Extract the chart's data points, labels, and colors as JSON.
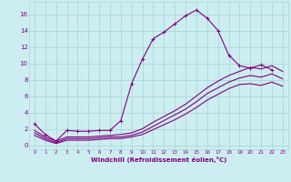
{
  "xlabel": "Windchill (Refroidissement éolien,°C)",
  "bg_color": "#cdeef0",
  "line_color": "#800080",
  "grid_color": "#aad8d8",
  "text_color": "#800080",
  "xlim": [
    -0.5,
    23.5
  ],
  "ylim": [
    -0.5,
    17.5
  ],
  "xticks": [
    0,
    1,
    2,
    3,
    4,
    5,
    6,
    7,
    8,
    9,
    10,
    11,
    12,
    13,
    14,
    15,
    16,
    17,
    18,
    19,
    20,
    21,
    22,
    23
  ],
  "yticks": [
    0,
    2,
    4,
    6,
    8,
    10,
    12,
    14,
    16
  ],
  "series": [
    {
      "x": [
        0,
        1,
        2,
        3,
        4,
        5,
        6,
        7,
        8,
        9,
        10,
        11,
        12,
        13,
        14,
        15,
        16,
        17,
        18,
        19,
        20,
        21,
        22,
        23
      ],
      "y": [
        2.6,
        1.3,
        0.5,
        1.8,
        1.7,
        1.7,
        1.8,
        1.8,
        3.0,
        7.5,
        10.5,
        13.0,
        13.8,
        14.8,
        15.8,
        16.5,
        15.5,
        14.0,
        11.0,
        9.7,
        9.4,
        9.8,
        9.2,
        null
      ],
      "marker": "+"
    },
    {
      "x": [
        0,
        1,
        2,
        3,
        4,
        5,
        6,
        7,
        8,
        9,
        10,
        11,
        12,
        13,
        14,
        15,
        16,
        17,
        18,
        19,
        20,
        21,
        22,
        23
      ],
      "y": [
        1.8,
        1.0,
        0.5,
        1.0,
        1.0,
        1.0,
        1.1,
        1.2,
        1.3,
        1.5,
        2.0,
        2.8,
        3.5,
        4.2,
        5.0,
        6.0,
        7.0,
        7.8,
        8.5,
        9.0,
        9.5,
        9.3,
        9.7,
        9.0
      ],
      "marker": null
    },
    {
      "x": [
        0,
        1,
        2,
        3,
        4,
        5,
        6,
        7,
        8,
        9,
        10,
        11,
        12,
        13,
        14,
        15,
        16,
        17,
        18,
        19,
        20,
        21,
        22,
        23
      ],
      "y": [
        1.5,
        0.8,
        0.3,
        0.8,
        0.8,
        0.8,
        0.9,
        1.0,
        1.0,
        1.2,
        1.6,
        2.3,
        3.0,
        3.7,
        4.4,
        5.3,
        6.3,
        7.0,
        7.7,
        8.2,
        8.5,
        8.3,
        8.7,
        8.1
      ],
      "marker": null
    },
    {
      "x": [
        0,
        1,
        2,
        3,
        4,
        5,
        6,
        7,
        8,
        9,
        10,
        11,
        12,
        13,
        14,
        15,
        16,
        17,
        18,
        19,
        20,
        21,
        22,
        23
      ],
      "y": [
        1.2,
        0.6,
        0.2,
        0.6,
        0.6,
        0.6,
        0.7,
        0.8,
        0.8,
        1.0,
        1.3,
        1.9,
        2.5,
        3.1,
        3.8,
        4.6,
        5.5,
        6.2,
        6.9,
        7.4,
        7.5,
        7.3,
        7.7,
        7.2
      ],
      "marker": null
    }
  ]
}
